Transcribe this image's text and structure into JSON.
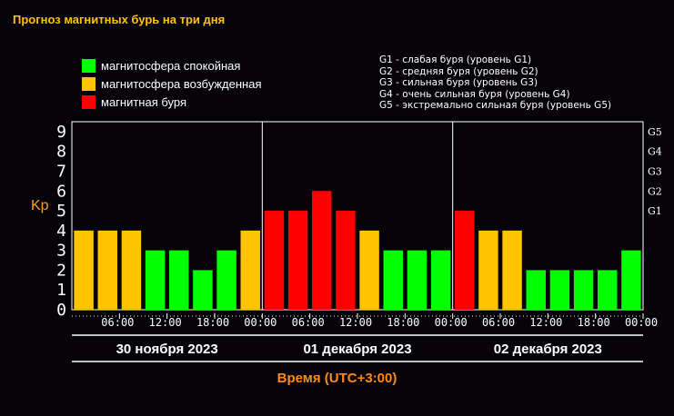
{
  "header": {
    "title": "Прогноз магнитных бурь на три дня"
  },
  "legend": [
    {
      "label": "магнитосфера спокойная",
      "color": "#00ff00"
    },
    {
      "label": "магнитосфера возбужденная",
      "color": "#ffc400"
    },
    {
      "label": "магнитная буря",
      "color": "#ff0000"
    }
  ],
  "g_legend": [
    "G1 - слабая буря (уровень G1)",
    "G2 - средняя буря (уровень G2)",
    "G3 - сильная буря (уровень G3)",
    "G4 - очень сильная буря (уровень G4)",
    "G5 - экстремально сильная буря (уровень G5)"
  ],
  "chart_data": {
    "type": "bar",
    "ylabel": "Kp",
    "xlabel": "Время (UTC+3:00)",
    "ylim": [
      0,
      9.5
    ],
    "yticks": [
      "0",
      "1",
      "2",
      "3",
      "4",
      "5",
      "6",
      "7",
      "8",
      "9"
    ],
    "right_ticks": [
      {
        "label": "G1",
        "kp": 5
      },
      {
        "label": "G2",
        "kp": 6
      },
      {
        "label": "G3",
        "kp": 7
      },
      {
        "label": "G4",
        "kp": 8
      },
      {
        "label": "G5",
        "kp": 9
      }
    ],
    "xticks": [
      "06:00",
      "12:00",
      "18:00",
      "00:00",
      "06:00",
      "12:00",
      "18:00",
      "00:00",
      "06:00",
      "12:00",
      "18:00",
      "00:00"
    ],
    "days": [
      "30 ноября 2023",
      "01 декабря 2023",
      "02 декабря 2023"
    ],
    "values": [
      4,
      4,
      4,
      3,
      3,
      2,
      3,
      4,
      5,
      5,
      6,
      5,
      4,
      3,
      3,
      3,
      5,
      4,
      4,
      2,
      2,
      2,
      2,
      3
    ],
    "colors": {
      "quiet": "#00ff00",
      "active": "#ffc400",
      "storm": "#ff0000",
      "axis": "#ffffff"
    }
  }
}
